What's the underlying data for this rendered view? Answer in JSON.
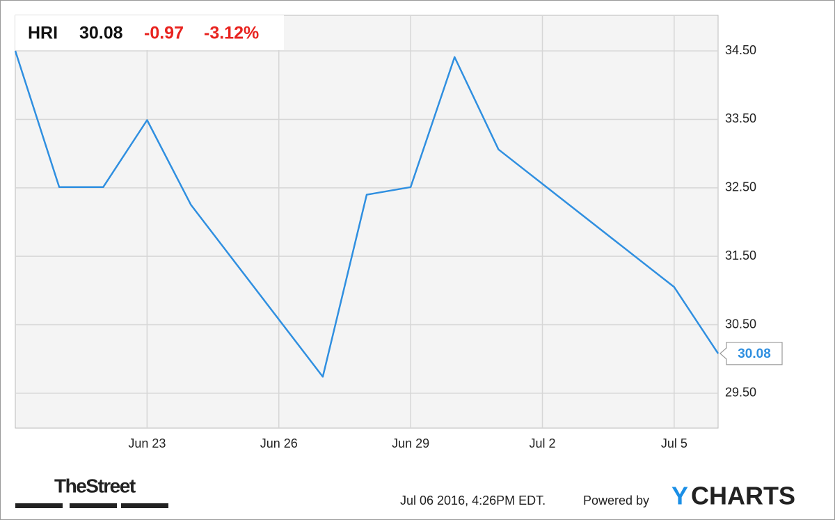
{
  "chart_data": {
    "type": "line",
    "header": {
      "ticker": "HRI",
      "price": "30.08",
      "change": "-0.97",
      "change_pct": "-3.12%"
    },
    "x": [
      "2016-06-20",
      "2016-06-21",
      "2016-06-22",
      "2016-06-23",
      "2016-06-24",
      "2016-06-27",
      "2016-06-28",
      "2016-06-29",
      "2016-06-30",
      "2016-07-01",
      "2016-07-05",
      "2016-07-06"
    ],
    "series": [
      {
        "name": "HRI",
        "color": "#2f8fe0",
        "values": [
          34.5,
          32.51,
          32.51,
          33.49,
          32.25,
          29.74,
          32.4,
          32.51,
          34.41,
          33.06,
          31.05,
          30.08
        ]
      }
    ],
    "last_value_label": "30.08",
    "xlim": [
      "2016-06-20",
      "2016-07-06"
    ],
    "xticks": [
      {
        "value": "2016-06-23",
        "label": "Jun 23"
      },
      {
        "value": "2016-06-26",
        "label": "Jun 26"
      },
      {
        "value": "2016-06-29",
        "label": "Jun 29"
      },
      {
        "value": "2016-07-02",
        "label": "Jul 2"
      },
      {
        "value": "2016-07-05",
        "label": "Jul 5"
      }
    ],
    "ylim": [
      28.99,
      35.02
    ],
    "yticks": [
      {
        "value": 29.5,
        "label": "29.50"
      },
      {
        "value": 30.5,
        "label": "30.50"
      },
      {
        "value": 31.5,
        "label": "31.50"
      },
      {
        "value": 32.5,
        "label": "32.50"
      },
      {
        "value": 33.5,
        "label": "33.50"
      },
      {
        "value": 34.5,
        "label": "34.50"
      }
    ],
    "grid": true,
    "footer": {
      "source_logo": "TheStreet",
      "timestamp": "Jul 06 2016, 4:26PM EDT.",
      "powered_by": "Powered by",
      "logo_y": "Y",
      "logo_rest": "CHARTS"
    }
  }
}
